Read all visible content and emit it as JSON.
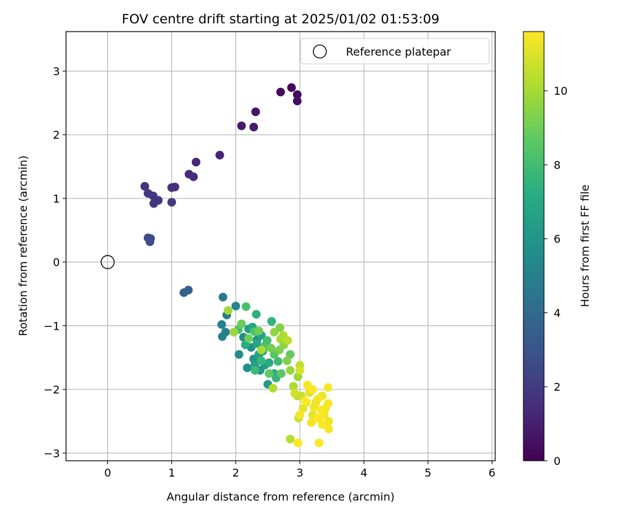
{
  "chart_data": {
    "type": "scatter",
    "title": "FOV centre drift starting at 2025/01/02 01:53:09",
    "xlabel": "Angular distance from reference (arcmin)",
    "ylabel": "Rotation from reference (arcmin)",
    "xlim": [
      -0.65,
      6.05
    ],
    "ylim": [
      -3.12,
      3.62
    ],
    "xticks": [
      0,
      1,
      2,
      3,
      4,
      5,
      6
    ],
    "yticks": [
      -3,
      -2,
      -1,
      0,
      1,
      2,
      3
    ],
    "grid": true,
    "legend": {
      "placement": "top-right",
      "entries": [
        "Reference platepar"
      ]
    },
    "reference_point": {
      "x": 0,
      "y": 0,
      "label": "Reference platepar"
    },
    "colorbar": {
      "label": "Hours from first FF file",
      "colormap": "viridis",
      "range": [
        0,
        11.6
      ],
      "ticks": [
        0,
        2,
        4,
        6,
        8,
        10
      ]
    },
    "points": [
      {
        "x": 2.87,
        "y": 2.74,
        "hours": 0.2
      },
      {
        "x": 2.96,
        "y": 2.63,
        "hours": 0.3
      },
      {
        "x": 2.7,
        "y": 2.67,
        "hours": 0.4
      },
      {
        "x": 2.96,
        "y": 2.53,
        "hours": 0.5
      },
      {
        "x": 2.31,
        "y": 2.36,
        "hours": 0.7
      },
      {
        "x": 2.09,
        "y": 2.14,
        "hours": 0.8
      },
      {
        "x": 2.28,
        "y": 2.12,
        "hours": 0.9
      },
      {
        "x": 1.75,
        "y": 1.68,
        "hours": 1.2
      },
      {
        "x": 1.38,
        "y": 1.57,
        "hours": 1.3
      },
      {
        "x": 1.27,
        "y": 1.38,
        "hours": 1.4
      },
      {
        "x": 1.34,
        "y": 1.34,
        "hours": 1.5
      },
      {
        "x": 1.05,
        "y": 1.18,
        "hours": 1.6
      },
      {
        "x": 1.0,
        "y": 1.17,
        "hours": 1.6
      },
      {
        "x": 0.58,
        "y": 1.19,
        "hours": 1.7
      },
      {
        "x": 0.63,
        "y": 1.08,
        "hours": 1.8
      },
      {
        "x": 0.71,
        "y": 1.04,
        "hours": 1.8
      },
      {
        "x": 0.79,
        "y": 0.97,
        "hours": 1.9
      },
      {
        "x": 0.72,
        "y": 0.92,
        "hours": 1.9
      },
      {
        "x": 1.0,
        "y": 0.94,
        "hours": 2.0
      },
      {
        "x": 0.63,
        "y": 0.38,
        "hours": 2.6
      },
      {
        "x": 0.67,
        "y": 0.37,
        "hours": 2.6
      },
      {
        "x": 0.66,
        "y": 0.32,
        "hours": 2.7
      },
      {
        "x": 1.19,
        "y": -0.48,
        "hours": 3.6
      },
      {
        "x": 1.26,
        "y": -0.44,
        "hours": 3.6
      },
      {
        "x": 1.8,
        "y": -0.55,
        "hours": 4.6
      },
      {
        "x": 1.86,
        "y": -0.83,
        "hours": 4.8
      },
      {
        "x": 1.78,
        "y": -0.98,
        "hours": 4.9
      },
      {
        "x": 1.84,
        "y": -1.1,
        "hours": 5.0
      },
      {
        "x": 1.79,
        "y": -1.17,
        "hours": 5.0
      },
      {
        "x": 2.0,
        "y": -0.69,
        "hours": 5.4
      },
      {
        "x": 2.05,
        "y": -1.45,
        "hours": 5.5
      },
      {
        "x": 2.12,
        "y": -1.18,
        "hours": 5.6
      },
      {
        "x": 2.18,
        "y": -1.66,
        "hours": 5.7
      },
      {
        "x": 2.24,
        "y": -1.34,
        "hours": 5.8
      },
      {
        "x": 2.28,
        "y": -1.52,
        "hours": 5.9
      },
      {
        "x": 2.33,
        "y": -1.22,
        "hours": 6.0
      },
      {
        "x": 2.38,
        "y": -1.7,
        "hours": 6.0
      },
      {
        "x": 2.42,
        "y": -1.4,
        "hours": 6.1
      },
      {
        "x": 2.45,
        "y": -1.62,
        "hours": 6.2
      },
      {
        "x": 2.5,
        "y": -1.92,
        "hours": 6.3
      },
      {
        "x": 2.2,
        "y": -1.05,
        "hours": 6.4
      },
      {
        "x": 2.3,
        "y": -1.6,
        "hours": 6.5
      },
      {
        "x": 2.36,
        "y": -1.45,
        "hours": 6.6
      },
      {
        "x": 2.4,
        "y": -1.15,
        "hours": 6.7
      },
      {
        "x": 2.26,
        "y": -1.02,
        "hours": 6.8
      },
      {
        "x": 2.33,
        "y": -1.28,
        "hours": 6.9
      },
      {
        "x": 2.47,
        "y": -1.3,
        "hours": 7.0
      },
      {
        "x": 2.52,
        "y": -1.58,
        "hours": 7.1
      },
      {
        "x": 2.15,
        "y": -1.3,
        "hours": 7.2
      },
      {
        "x": 2.6,
        "y": -1.75,
        "hours": 7.3
      },
      {
        "x": 2.32,
        "y": -0.82,
        "hours": 7.4
      },
      {
        "x": 2.56,
        "y": -0.93,
        "hours": 7.5
      },
      {
        "x": 2.63,
        "y": -1.82,
        "hours": 7.6
      },
      {
        "x": 2.4,
        "y": -1.55,
        "hours": 7.7
      },
      {
        "x": 2.3,
        "y": -1.7,
        "hours": 7.8
      },
      {
        "x": 2.66,
        "y": -1.56,
        "hours": 7.9
      },
      {
        "x": 2.49,
        "y": -1.23,
        "hours": 8.0
      },
      {
        "x": 2.04,
        "y": -1.06,
        "hours": 8.1
      },
      {
        "x": 2.16,
        "y": -0.7,
        "hours": 8.2
      },
      {
        "x": 2.29,
        "y": -1.09,
        "hours": 8.3
      },
      {
        "x": 2.45,
        "y": -1.34,
        "hours": 8.4
      },
      {
        "x": 2.6,
        "y": -1.45,
        "hours": 8.5
      },
      {
        "x": 2.71,
        "y": -1.75,
        "hours": 8.6
      },
      {
        "x": 2.52,
        "y": -1.75,
        "hours": 8.7
      },
      {
        "x": 2.85,
        "y": -1.45,
        "hours": 8.8
      },
      {
        "x": 2.09,
        "y": -0.97,
        "hours": 8.9
      },
      {
        "x": 2.2,
        "y": -1.2,
        "hours": 9.0
      },
      {
        "x": 2.36,
        "y": -1.08,
        "hours": 9.0
      },
      {
        "x": 2.55,
        "y": -1.35,
        "hours": 9.1
      },
      {
        "x": 2.68,
        "y": -1.38,
        "hours": 9.2
      },
      {
        "x": 2.8,
        "y": -1.55,
        "hours": 9.3
      },
      {
        "x": 2.69,
        "y": -1.03,
        "hours": 9.4
      },
      {
        "x": 2.75,
        "y": -1.3,
        "hours": 9.5
      },
      {
        "x": 2.6,
        "y": -1.1,
        "hours": 9.6
      },
      {
        "x": 2.85,
        "y": -1.7,
        "hours": 9.7
      },
      {
        "x": 2.97,
        "y": -1.8,
        "hours": 9.8
      },
      {
        "x": 1.97,
        "y": -1.1,
        "hours": 9.8
      },
      {
        "x": 1.88,
        "y": -0.76,
        "hours": 9.9
      },
      {
        "x": 2.4,
        "y": -1.38,
        "hours": 10.0
      },
      {
        "x": 2.7,
        "y": -1.21,
        "hours": 10.0
      },
      {
        "x": 2.9,
        "y": -1.95,
        "hours": 10.1
      },
      {
        "x": 2.58,
        "y": -1.98,
        "hours": 10.2
      },
      {
        "x": 2.74,
        "y": -1.15,
        "hours": 10.2
      },
      {
        "x": 2.96,
        "y": -2.1,
        "hours": 10.3
      },
      {
        "x": 2.85,
        "y": -2.78,
        "hours": 10.3
      },
      {
        "x": 2.81,
        "y": -1.23,
        "hours": 10.4
      },
      {
        "x": 3.0,
        "y": -1.62,
        "hours": 10.5
      },
      {
        "x": 3.02,
        "y": -2.1,
        "hours": 10.6
      },
      {
        "x": 2.98,
        "y": -2.45,
        "hours": 10.7
      },
      {
        "x": 2.92,
        "y": -2.06,
        "hours": 10.8
      },
      {
        "x": 3.0,
        "y": -1.7,
        "hours": 10.9
      },
      {
        "x": 3.1,
        "y": -2.2,
        "hours": 11.0
      },
      {
        "x": 3.2,
        "y": -2.4,
        "hours": 11.1
      },
      {
        "x": 3.05,
        "y": -2.3,
        "hours": 11.2
      },
      {
        "x": 3.15,
        "y": -2.05,
        "hours": 11.2
      },
      {
        "x": 3.25,
        "y": -2.2,
        "hours": 11.3
      },
      {
        "x": 3.3,
        "y": -2.45,
        "hours": 11.3
      },
      {
        "x": 3.35,
        "y": -2.1,
        "hours": 11.3
      },
      {
        "x": 3.4,
        "y": -2.3,
        "hours": 11.4
      },
      {
        "x": 3.45,
        "y": -2.5,
        "hours": 11.4
      },
      {
        "x": 3.18,
        "y": -2.52,
        "hours": 11.4
      },
      {
        "x": 3.22,
        "y": -2.28,
        "hours": 11.4
      },
      {
        "x": 3.28,
        "y": -2.15,
        "hours": 11.5
      },
      {
        "x": 3.38,
        "y": -2.4,
        "hours": 11.5
      },
      {
        "x": 3.44,
        "y": -1.97,
        "hours": 11.5
      },
      {
        "x": 3.45,
        "y": -2.62,
        "hours": 11.5
      },
      {
        "x": 3.44,
        "y": -2.22,
        "hours": 11.5
      },
      {
        "x": 3.12,
        "y": -1.93,
        "hours": 11.5
      },
      {
        "x": 3.0,
        "y": -2.4,
        "hours": 11.5
      },
      {
        "x": 3.2,
        "y": -2.0,
        "hours": 11.6
      },
      {
        "x": 3.33,
        "y": -2.32,
        "hours": 11.6
      },
      {
        "x": 3.08,
        "y": -2.18,
        "hours": 11.6
      },
      {
        "x": 3.27,
        "y": -2.45,
        "hours": 11.6
      },
      {
        "x": 2.97,
        "y": -2.84,
        "hours": 11.6
      },
      {
        "x": 3.3,
        "y": -2.84,
        "hours": 11.6
      },
      {
        "x": 3.35,
        "y": -2.55,
        "hours": 11.6
      }
    ]
  }
}
